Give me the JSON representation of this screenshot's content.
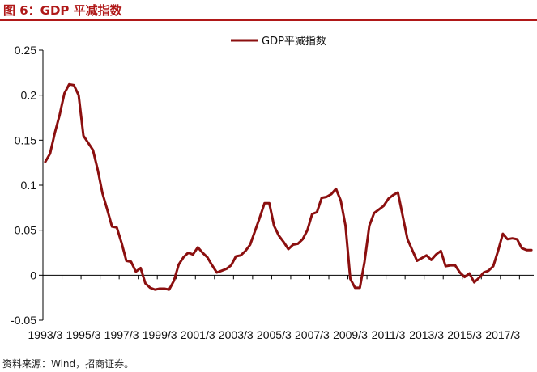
{
  "header": {
    "title": "图 6：GDP 平减指数"
  },
  "footer": {
    "source": "资料来源：Wind，招商证券。"
  },
  "colors": {
    "title": "#b01818",
    "series": "#8b0f0f",
    "axis": "#000000"
  },
  "chart_data": {
    "type": "line",
    "ylim": [
      -0.05,
      0.25
    ],
    "y_ticks": [
      -0.05,
      0,
      0.05,
      0.1,
      0.15,
      0.2,
      0.25
    ],
    "y_tick_labels": [
      "-0.05",
      "0",
      "0.05",
      "0.1",
      "0.15",
      "0.2",
      "0.25"
    ],
    "x_tick_labels": [
      "1993/3",
      "1995/3",
      "1997/3",
      "1999/3",
      "2001/3",
      "2003/3",
      "2005/3",
      "2007/3",
      "2009/3",
      "2011/3",
      "2013/3",
      "2015/3",
      "2017/3"
    ],
    "x_start": "1993Q1",
    "x_end": "2018Q3",
    "legend_position": "top-center",
    "grid": false,
    "series": [
      {
        "name": "GDP平减指数",
        "values": [
          0.126,
          0.135,
          0.158,
          0.178,
          0.202,
          0.212,
          0.211,
          0.2,
          0.155,
          0.147,
          0.139,
          0.117,
          0.091,
          0.073,
          0.054,
          0.053,
          0.036,
          0.016,
          0.015,
          0.004,
          0.008,
          -0.009,
          -0.014,
          -0.016,
          -0.015,
          -0.015,
          -0.016,
          -0.006,
          0.012,
          0.02,
          0.025,
          0.023,
          0.031,
          0.025,
          0.02,
          0.011,
          0.003,
          0.005,
          0.007,
          0.011,
          0.021,
          0.022,
          0.027,
          0.034,
          0.049,
          0.064,
          0.08,
          0.08,
          0.055,
          0.044,
          0.037,
          0.029,
          0.034,
          0.035,
          0.04,
          0.05,
          0.068,
          0.07,
          0.086,
          0.087,
          0.09,
          0.096,
          0.083,
          0.055,
          -0.004,
          -0.014,
          -0.014,
          0.015,
          0.055,
          0.069,
          0.073,
          0.077,
          0.085,
          0.089,
          0.092,
          0.066,
          0.04,
          0.028,
          0.016,
          0.019,
          0.022,
          0.017,
          0.023,
          0.027,
          0.01,
          0.011,
          0.011,
          0.003,
          -0.002,
          0.002,
          -0.008,
          -0.003,
          0.003,
          0.005,
          0.01,
          0.027,
          0.046,
          0.04,
          0.041,
          0.04,
          0.03,
          0.028,
          0.028
        ]
      }
    ]
  }
}
